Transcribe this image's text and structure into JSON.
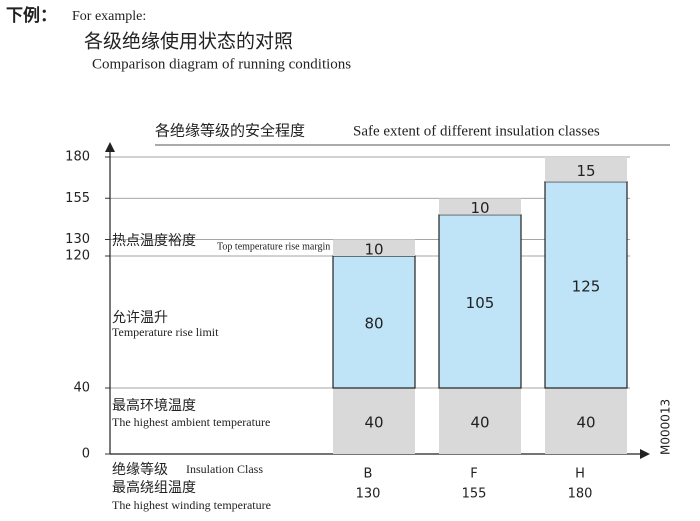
{
  "header": {
    "lead": "下例：",
    "lead_en": "For example:",
    "title": "各级绝缘使用状态的对照",
    "subtitle": "Comparison diagram of running conditions"
  },
  "chart_data": {
    "type": "stacked_bar",
    "title": "各绝缘等级的安全程度",
    "title_en": "Safe extent of different insulation classes",
    "category_label": "绝缘等级",
    "category_label_en": "Insulation Class",
    "categories": [
      "B",
      "F",
      "H"
    ],
    "total_label": "最高绕组温度",
    "total_label_en": "The highest winding temperature",
    "winding_temperatures": [
      130,
      155,
      180
    ],
    "series": [
      {
        "name": "最高环境温度",
        "name_en": "The highest ambient temperature",
        "color": "#d9d9d9",
        "values": [
          40,
          40,
          40
        ]
      },
      {
        "name": "允许温升",
        "name_en": "Temperature rise limit",
        "color": "#bfe3f7",
        "values": [
          80,
          105,
          125
        ]
      },
      {
        "name": "热点温度裕度",
        "name_en": "Top temperature rise margin",
        "color": "#d9d9d9",
        "values": [
          10,
          10,
          15
        ]
      }
    ],
    "ylim": [
      0,
      180
    ],
    "yticks": [
      0,
      40,
      120,
      130,
      155,
      180
    ],
    "grid": true,
    "code": "M000013"
  }
}
